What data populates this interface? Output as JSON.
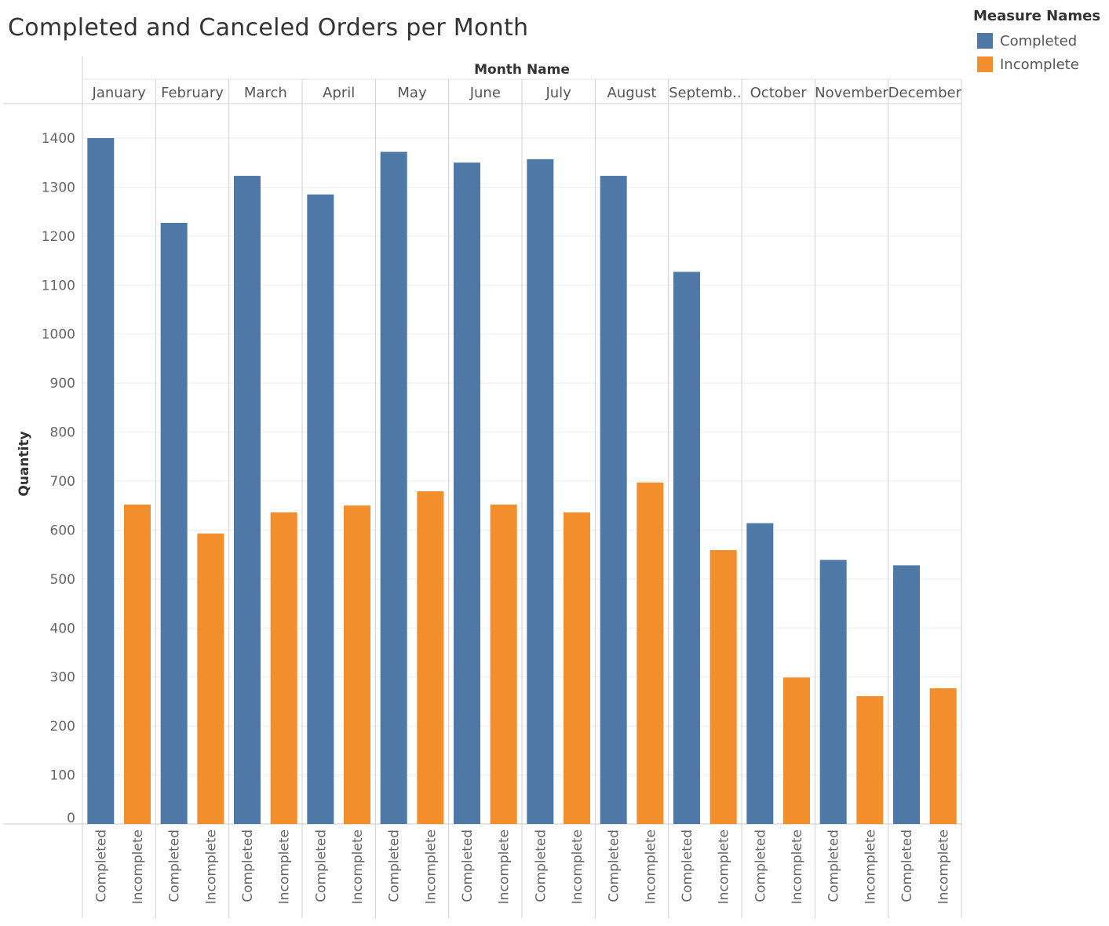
{
  "chart_data": {
    "type": "bar",
    "title": "Completed and Canceled Orders per Month",
    "column_header": "Month Name",
    "ylabel": "Quantity",
    "ylim": [
      0,
      1470
    ],
    "yticks": [
      0,
      100,
      200,
      300,
      400,
      500,
      600,
      700,
      800,
      900,
      1000,
      1100,
      1200,
      1300,
      1400
    ],
    "categories": [
      "January",
      "February",
      "March",
      "April",
      "May",
      "June",
      "July",
      "August",
      "Septemb..",
      "October",
      "November",
      "December"
    ],
    "measure_labels": [
      "Completed",
      "Incomplete"
    ],
    "legend_title": "Measure Names",
    "series": [
      {
        "name": "Completed",
        "color": "#4e79a7",
        "values": [
          1400,
          1227,
          1323,
          1285,
          1372,
          1350,
          1357,
          1323,
          1127,
          614,
          539,
          528
        ]
      },
      {
        "name": "Incomplete",
        "color": "#f28e2b",
        "values": [
          652,
          593,
          636,
          650,
          679,
          652,
          636,
          697,
          559,
          299,
          261,
          277
        ]
      }
    ]
  }
}
